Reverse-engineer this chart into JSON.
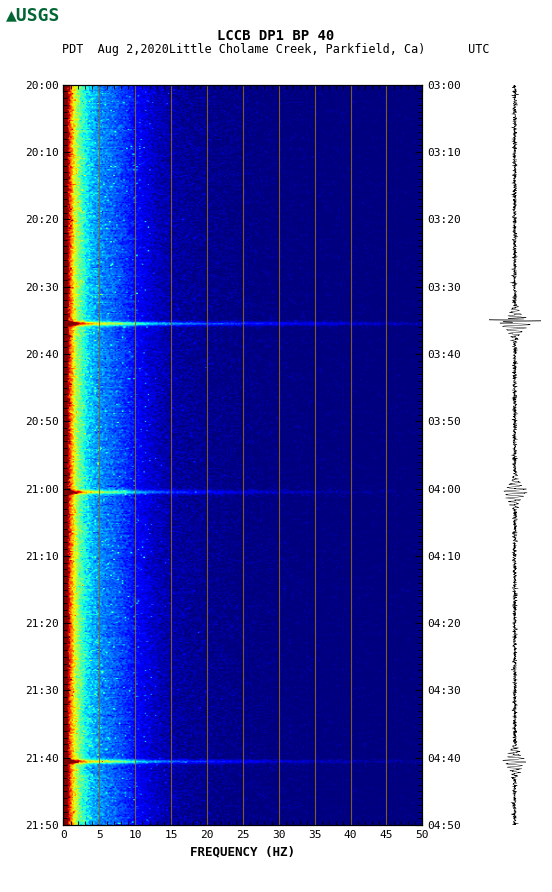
{
  "title_line1": "LCCB DP1 BP 40",
  "title_line2": "PDT  Aug 2,2020Little Cholame Creek, Parkfield, Ca)      UTC",
  "xlabel": "FREQUENCY (HZ)",
  "freq_min": 0,
  "freq_max": 50,
  "ytick_labels_left": [
    "20:00",
    "20:10",
    "20:20",
    "20:30",
    "20:40",
    "20:50",
    "21:00",
    "21:10",
    "21:20",
    "21:30",
    "21:40",
    "21:50"
  ],
  "ytick_labels_right": [
    "03:00",
    "03:10",
    "03:20",
    "03:30",
    "03:40",
    "03:50",
    "04:00",
    "04:10",
    "04:20",
    "04:30",
    "04:40",
    "04:50"
  ],
  "xtick_positions": [
    0,
    5,
    10,
    15,
    20,
    25,
    30,
    35,
    40,
    45,
    50
  ],
  "vertical_line_positions": [
    5,
    10,
    15,
    20,
    25,
    30,
    35,
    40,
    45
  ],
  "vertical_line_color": "#8B6914",
  "background_color": "#ffffff",
  "figsize": [
    5.52,
    8.92
  ],
  "dpi": 100,
  "n_time": 660,
  "n_freq": 250,
  "event_times_min": [
    35.5,
    60.5,
    100.5
  ],
  "event_amplitudes": [
    70,
    55,
    60
  ],
  "event_freq_scales": [
    25,
    18,
    20
  ]
}
